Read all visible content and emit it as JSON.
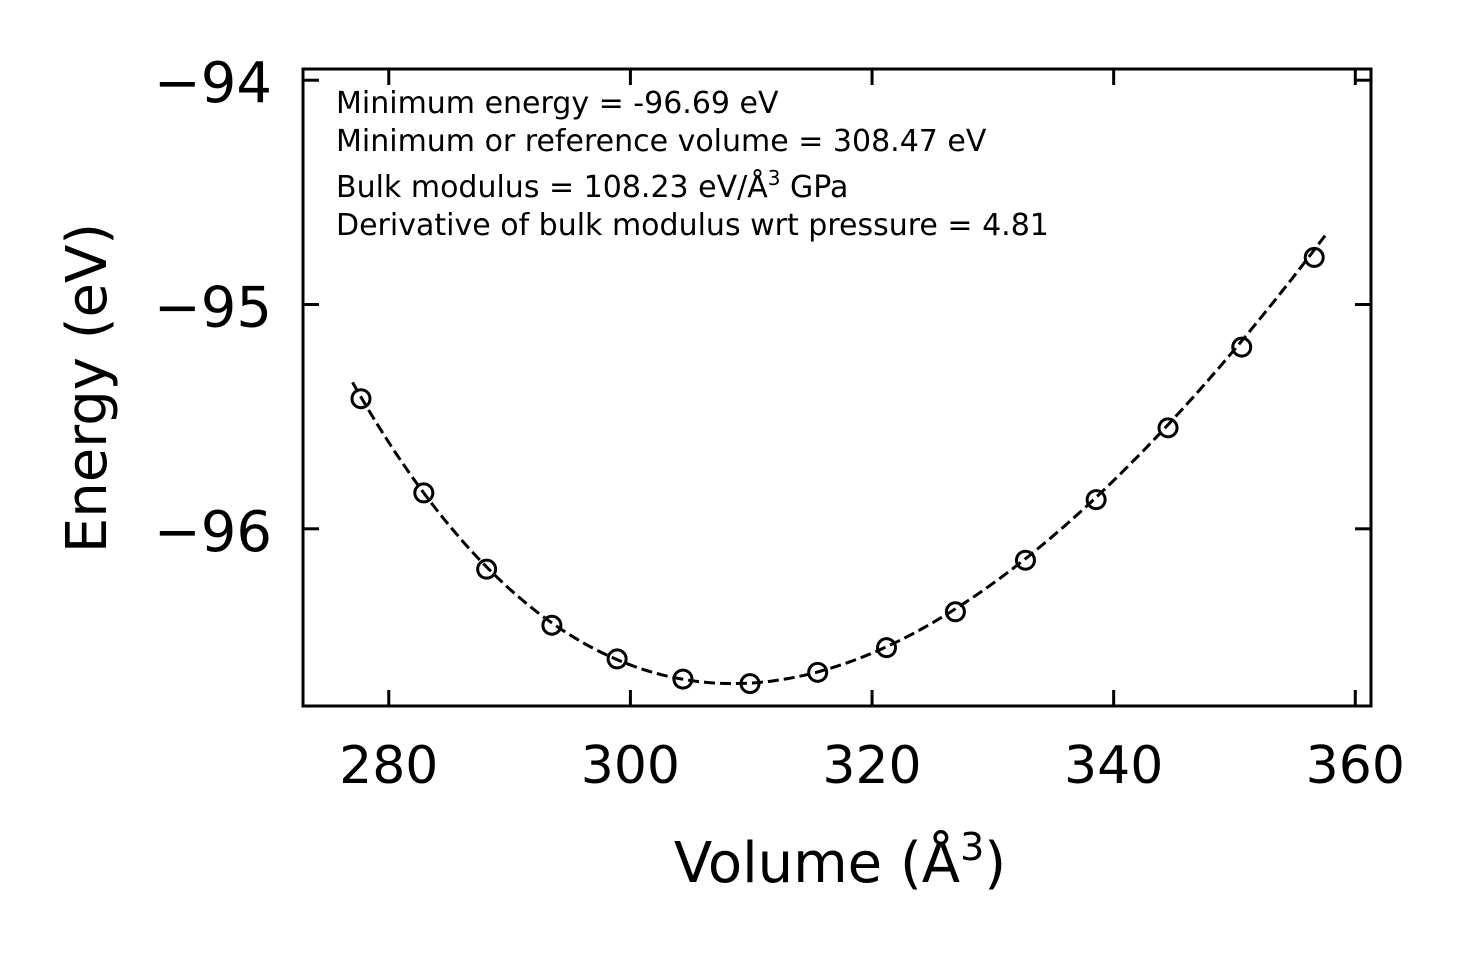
{
  "chart_data": {
    "type": "scatter",
    "title": "",
    "xlabel": "Volume (Å",
    "xlabel_sup": "3",
    "xlabel_end": ")",
    "ylabel": "Energy (eV)",
    "xlim": [
      272.9,
      361.3
    ],
    "ylim": [
      -96.79,
      -93.95
    ],
    "xticks": [
      280,
      300,
      320,
      340,
      360
    ],
    "xtick_labels": [
      "280",
      "300",
      "320",
      "340",
      "360"
    ],
    "yticks": [
      -94,
      -95,
      -96
    ],
    "ytick_labels": [
      "−94",
      "−95",
      "−96"
    ],
    "grid": false,
    "series": [
      {
        "name": "data",
        "marker": "open-circle",
        "color": "#000000",
        "x": [
          277.7,
          282.9,
          288.1,
          293.5,
          298.9,
          304.35,
          309.9,
          315.5,
          321.2,
          326.9,
          332.7,
          338.55,
          344.5,
          350.6,
          356.6
        ],
        "y": [
          -95.42,
          -95.84,
          -96.18,
          -96.43,
          -96.58,
          -96.67,
          -96.69,
          -96.64,
          -96.53,
          -96.37,
          -96.14,
          -95.87,
          -95.55,
          -95.19,
          -94.79
        ]
      },
      {
        "name": "fit",
        "style": "dashed",
        "color": "#000000",
        "model": "murnaghan",
        "E0": -96.69,
        "V0": 308.47,
        "B_GPa": 108.23,
        "Bp": 4.81,
        "x_range": [
          277.0,
          357.5
        ]
      }
    ],
    "annotations": [
      "Minimum energy = -96.69 eV",
      "Minimum or reference volume = 308.47 eV",
      "Bulk modulus = 108.23 eV/Å",
      "Derivative of bulk modulus wrt pressure = 4.81"
    ],
    "annotation_bulk_sup": "3",
    "annotation_bulk_end": " GPa"
  }
}
